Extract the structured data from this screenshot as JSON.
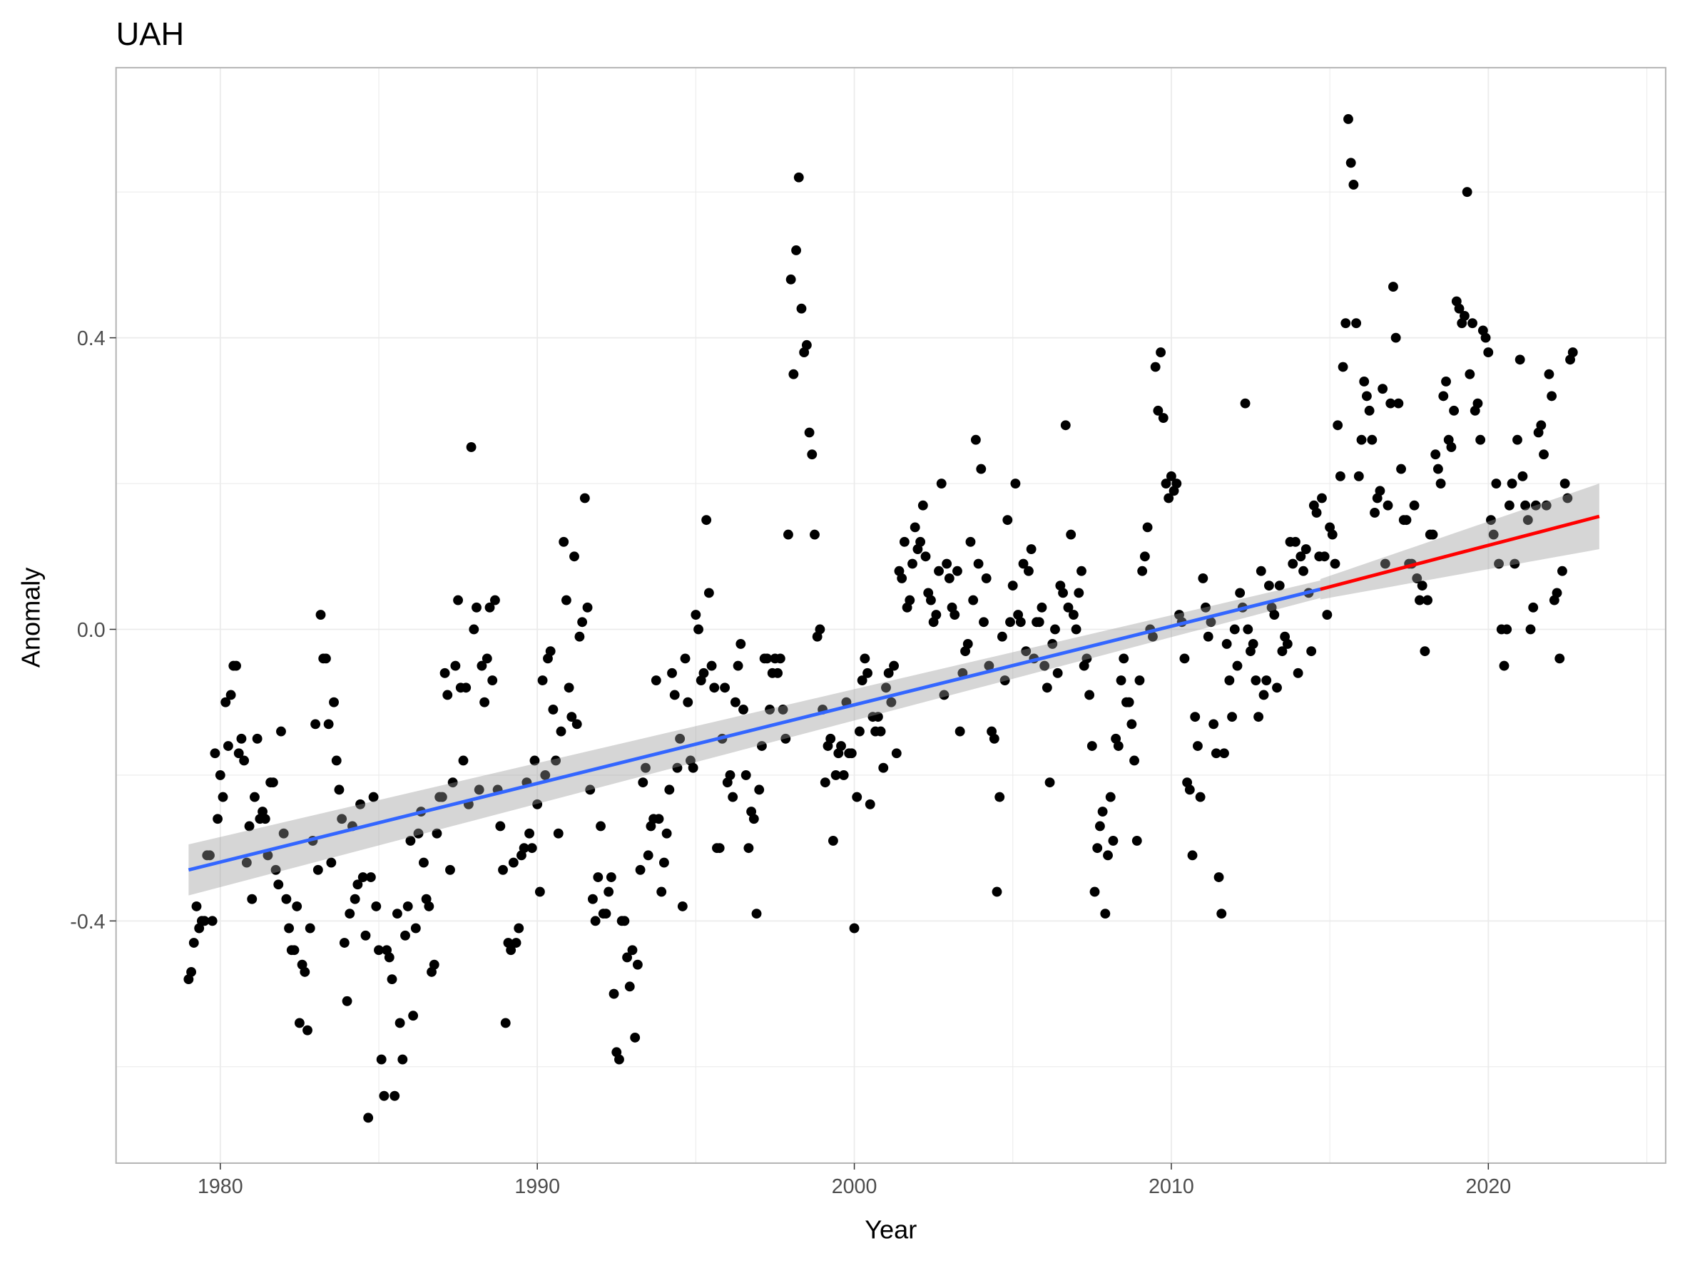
{
  "chart_data": {
    "type": "scatter",
    "title": "UAH",
    "xlabel": "Year",
    "ylabel": "Anomaly",
    "xlim": [
      1976.7,
      2025.6
    ],
    "ylim": [
      -0.73,
      0.77
    ],
    "x_ticks": [
      "1980",
      "1990",
      "2000",
      "2010",
      "2020"
    ],
    "x_tick_values": [
      1980,
      1990,
      2000,
      2010,
      2020
    ],
    "y_ticks": [
      "-0.4",
      "0.0",
      "0.4"
    ],
    "y_tick_values": [
      -0.4,
      0.0,
      0.4
    ],
    "grid": true,
    "x_start": 1979.0,
    "x_step": 0.08333,
    "point_color": "#000000",
    "values_by_year": [
      [
        -0.48,
        -0.47,
        -0.43,
        -0.38,
        -0.41,
        -0.4,
        -0.4,
        -0.31,
        -0.31,
        -0.4,
        -0.17,
        -0.26
      ],
      [
        -0.2,
        -0.23,
        -0.1,
        -0.16,
        -0.09,
        -0.05,
        -0.05,
        -0.17,
        -0.15,
        -0.18,
        -0.32,
        -0.27
      ],
      [
        -0.37,
        -0.23,
        -0.15,
        -0.26,
        -0.25,
        -0.26,
        -0.31,
        -0.21,
        -0.21,
        -0.33,
        -0.35,
        -0.14
      ],
      [
        -0.28,
        -0.37,
        -0.41,
        -0.44,
        -0.44,
        -0.38,
        -0.54,
        -0.46,
        -0.47,
        -0.55,
        -0.41,
        -0.29
      ],
      [
        -0.13,
        -0.33,
        0.02,
        -0.04,
        -0.04,
        -0.13,
        -0.32,
        -0.1,
        -0.18,
        -0.22,
        -0.26,
        -0.43
      ],
      [
        -0.51,
        -0.39,
        -0.27,
        -0.37,
        -0.35,
        -0.24,
        -0.34,
        -0.42,
        -0.67,
        -0.34,
        -0.23,
        -0.38
      ],
      [
        -0.44,
        -0.59,
        -0.64,
        -0.44,
        -0.45,
        -0.48,
        -0.64,
        -0.39,
        -0.54,
        -0.59,
        -0.42,
        -0.38
      ],
      [
        -0.29,
        -0.53,
        -0.41,
        -0.28,
        -0.25,
        -0.32,
        -0.37,
        -0.38,
        -0.47,
        -0.46,
        -0.28,
        -0.23
      ],
      [
        -0.23,
        -0.06,
        -0.09,
        -0.33,
        -0.21,
        -0.05,
        0.04,
        -0.08,
        -0.18,
        -0.08,
        -0.24,
        0.25
      ],
      [
        0.0,
        0.03,
        -0.22,
        -0.05,
        -0.1,
        -0.04,
        0.03,
        -0.07,
        0.04,
        -0.22,
        -0.27,
        -0.33
      ],
      [
        -0.54,
        -0.43,
        -0.44,
        -0.32,
        -0.43,
        -0.41,
        -0.31,
        -0.3,
        -0.21,
        -0.28,
        -0.3,
        -0.18
      ],
      [
        -0.24,
        -0.36,
        -0.07,
        -0.2,
        -0.04,
        -0.03,
        -0.11,
        -0.18,
        -0.28,
        -0.14,
        0.12,
        0.04
      ],
      [
        -0.08,
        -0.12,
        0.1,
        -0.13,
        -0.01,
        0.01,
        0.18,
        0.03,
        -0.22,
        -0.37,
        -0.4,
        -0.34
      ],
      [
        -0.27,
        -0.39,
        -0.39,
        -0.36,
        -0.34,
        -0.5,
        -0.58,
        -0.59,
        -0.4,
        -0.4,
        -0.45,
        -0.49
      ],
      [
        -0.44,
        -0.56,
        -0.46,
        -0.33,
        -0.21,
        -0.19,
        -0.31,
        -0.27,
        -0.26,
        -0.07,
        -0.26,
        -0.36
      ],
      [
        -0.32,
        -0.28,
        -0.22,
        -0.06,
        -0.09,
        -0.19,
        -0.15,
        -0.38,
        -0.04,
        -0.1,
        -0.18,
        -0.19
      ],
      [
        0.02,
        0.0,
        -0.07,
        -0.06,
        0.15,
        0.05,
        -0.05,
        -0.08,
        -0.3,
        -0.3,
        -0.15,
        -0.08
      ],
      [
        -0.21,
        -0.2,
        -0.23,
        -0.1,
        -0.05,
        -0.02,
        -0.11,
        -0.2,
        -0.3,
        -0.25,
        -0.26,
        -0.39
      ],
      [
        -0.22,
        -0.16,
        -0.04,
        -0.04,
        -0.11,
        -0.06,
        -0.04,
        -0.06,
        -0.04,
        -0.11,
        -0.15,
        0.13
      ],
      [
        0.48,
        0.35,
        0.52,
        0.62,
        0.44,
        0.38,
        0.39,
        0.27,
        0.24,
        0.13,
        -0.01,
        0.0
      ],
      [
        -0.11,
        -0.21,
        -0.16,
        -0.15,
        -0.29,
        -0.2,
        -0.17,
        -0.16,
        -0.2,
        -0.1,
        -0.17,
        -0.17
      ],
      [
        -0.41,
        -0.23,
        -0.14,
        -0.07,
        -0.04,
        -0.06,
        -0.24,
        -0.12,
        -0.14,
        -0.12,
        -0.14,
        -0.19
      ],
      [
        -0.08,
        -0.06,
        -0.1,
        -0.05,
        -0.17,
        0.08,
        0.07,
        0.12,
        0.03,
        0.04,
        0.09,
        0.14
      ],
      [
        0.11,
        0.12,
        0.17,
        0.1,
        0.05,
        0.04,
        0.01,
        0.02,
        0.08,
        0.2,
        -0.09,
        0.09
      ],
      [
        0.07,
        0.03,
        0.02,
        0.08,
        -0.14,
        -0.06,
        -0.03,
        -0.02,
        0.12,
        0.04,
        0.26,
        0.09
      ],
      [
        0.22,
        0.01,
        0.07,
        -0.05,
        -0.14,
        -0.15,
        -0.36,
        -0.23,
        -0.01,
        -0.07,
        0.15,
        0.01
      ],
      [
        0.06,
        0.2,
        0.02,
        0.01,
        0.09,
        -0.03,
        0.08,
        0.11,
        -0.04,
        0.01,
        0.01,
        0.03
      ],
      [
        -0.05,
        -0.08,
        -0.21,
        -0.02,
        0.0,
        -0.06,
        0.06,
        0.05,
        0.28,
        0.03,
        0.13,
        0.02
      ],
      [
        0.0,
        0.05,
        0.08,
        -0.05,
        -0.04,
        -0.09,
        -0.16,
        -0.36,
        -0.3,
        -0.27,
        -0.25,
        -0.39
      ],
      [
        -0.31,
        -0.23,
        -0.29,
        -0.15,
        -0.16,
        -0.07,
        -0.04,
        -0.1,
        -0.1,
        -0.13,
        -0.18,
        -0.29
      ],
      [
        -0.07,
        0.08,
        0.1,
        0.14,
        0.0,
        -0.01,
        0.36,
        0.3,
        0.38,
        0.29,
        0.2,
        0.18
      ],
      [
        0.21,
        0.19,
        0.2,
        0.02,
        0.01,
        -0.04,
        -0.21,
        -0.22,
        -0.31,
        -0.12,
        -0.16,
        -0.23
      ],
      [
        0.07,
        0.03,
        -0.01,
        0.01,
        -0.13,
        -0.17,
        -0.34,
        -0.39,
        -0.17,
        -0.02,
        -0.07,
        -0.12
      ],
      [
        0.0,
        -0.05,
        0.05,
        0.03,
        0.31,
        0.0,
        -0.03,
        -0.02,
        -0.07,
        -0.12,
        0.08,
        -0.09
      ],
      [
        -0.07,
        0.06,
        0.03,
        0.02,
        -0.08,
        0.06,
        -0.03,
        -0.01,
        -0.02,
        0.12,
        0.09,
        0.12
      ],
      [
        -0.06,
        0.1,
        0.08,
        0.11,
        0.05,
        -0.03,
        0.17,
        0.16,
        0.1,
        0.18,
        0.1,
        0.02
      ],
      [
        0.14,
        0.13,
        0.09,
        0.28,
        0.21,
        0.36,
        0.42,
        0.7,
        0.64,
        0.61,
        0.42,
        0.21
      ],
      [
        0.26,
        0.34,
        0.32,
        0.3,
        0.26,
        0.16,
        0.18,
        0.19,
        0.33,
        0.09,
        0.17,
        0.31
      ],
      [
        0.47,
        0.4,
        0.31,
        0.22,
        0.15,
        0.15,
        0.09,
        0.09,
        0.17,
        0.07,
        0.04,
        0.06
      ],
      [
        -0.03,
        0.04,
        0.13,
        0.13,
        0.24,
        0.22,
        0.2,
        0.32,
        0.34,
        0.26,
        0.25,
        0.3
      ],
      [
        0.45,
        0.44,
        0.42,
        0.43,
        0.6,
        0.35,
        0.42,
        0.3,
        0.31,
        0.26,
        0.41,
        0.4
      ],
      [
        0.38,
        0.15,
        0.13,
        0.2,
        0.09,
        0.0,
        -0.05,
        0.0,
        0.17,
        0.2,
        0.09,
        0.26
      ],
      [
        0.37,
        0.21,
        0.17,
        0.15,
        0.0,
        0.03,
        0.17,
        0.27,
        0.28,
        0.24,
        0.17,
        0.35
      ],
      [
        0.32,
        0.04,
        0.05,
        -0.04,
        0.08,
        0.2,
        0.18,
        0.37,
        0.38
      ]
    ],
    "trend_segments": [
      {
        "name": "trend-to-2014",
        "color": "#3366ff",
        "x": [
          1979.0,
          2014.7
        ],
        "y": [
          -0.33,
          0.055
        ],
        "ci_halfwidth": [
          0.035,
          0.012
        ]
      },
      {
        "name": "trend-from-2014",
        "color": "#ff0000",
        "x": [
          2014.7,
          2023.5
        ],
        "y": [
          0.055,
          0.155
        ],
        "ci_halfwidth": [
          0.014,
          0.045
        ]
      }
    ],
    "ci_color": "#999999"
  }
}
